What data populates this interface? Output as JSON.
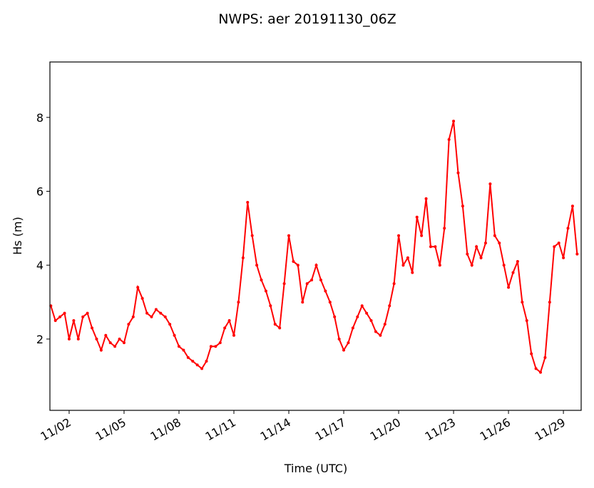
{
  "chart_data": {
    "type": "line",
    "title": "NWPS: aer 20191130_06Z",
    "x_label": "Time (UTC)",
    "y_label": "Hs (m)",
    "x": [
      1,
      1.25,
      1.5,
      1.75,
      2,
      2.25,
      2.5,
      2.75,
      3,
      3.25,
      3.5,
      3.75,
      4,
      4.25,
      4.5,
      4.75,
      5,
      5.25,
      5.5,
      5.75,
      6,
      6.25,
      6.5,
      6.75,
      7,
      7.25,
      7.5,
      7.75,
      8,
      8.25,
      8.5,
      8.75,
      9,
      9.25,
      9.5,
      9.75,
      10,
      10.25,
      10.5,
      10.75,
      11,
      11.25,
      11.5,
      11.75,
      12,
      12.25,
      12.5,
      12.75,
      13,
      13.25,
      13.5,
      13.75,
      14,
      14.25,
      14.5,
      14.75,
      15,
      15.25,
      15.5,
      15.75,
      16,
      16.25,
      16.5,
      16.75,
      17,
      17.25,
      17.5,
      17.75,
      18,
      18.25,
      18.5,
      18.75,
      19,
      19.25,
      19.5,
      19.75,
      20,
      20.25,
      20.5,
      20.75,
      21,
      21.25,
      21.5,
      21.75,
      22,
      22.25,
      22.5,
      22.75,
      23,
      23.25,
      23.5,
      23.75,
      24,
      24.25,
      24.5,
      24.75,
      25,
      25.25,
      25.5,
      25.75,
      26,
      26.25,
      26.5,
      26.75,
      27,
      27.25,
      27.5,
      27.75,
      28,
      28.25,
      28.5,
      28.75,
      29,
      29.25,
      29.5,
      29.75
    ],
    "series": [
      {
        "color": "#ff0000",
        "values": [
          2.9,
          2.5,
          2.6,
          2.7,
          2.0,
          2.5,
          2.0,
          2.6,
          2.7,
          2.3,
          2.0,
          1.7,
          2.1,
          1.9,
          1.8,
          2.0,
          1.9,
          2.4,
          2.6,
          3.4,
          3.1,
          2.7,
          2.6,
          2.8,
          2.7,
          2.6,
          2.4,
          2.1,
          1.8,
          1.7,
          1.5,
          1.4,
          1.3,
          1.2,
          1.4,
          1.8,
          1.8,
          1.9,
          2.3,
          2.5,
          2.1,
          3.0,
          4.2,
          5.7,
          4.8,
          4.0,
          3.6,
          3.3,
          2.9,
          2.4,
          2.3,
          3.5,
          4.8,
          4.1,
          4.0,
          3.0,
          3.5,
          3.6,
          4.0,
          3.6,
          3.3,
          3.0,
          2.6,
          2.0,
          1.7,
          1.9,
          2.3,
          2.6,
          2.9,
          2.7,
          2.5,
          2.2,
          2.1,
          2.4,
          2.9,
          3.5,
          4.8,
          4.0,
          4.2,
          3.8,
          5.3,
          4.8,
          5.8,
          4.5,
          4.5,
          4.0,
          5.0,
          7.4,
          7.9,
          6.5,
          5.6,
          4.3,
          4.0,
          4.5,
          4.2,
          4.6,
          6.2,
          4.8,
          4.6,
          4.0,
          3.4,
          3.8,
          4.1,
          3.0,
          2.5,
          1.6,
          1.2,
          1.1,
          1.5,
          3.0,
          4.5,
          4.6,
          4.2,
          5.0,
          5.6,
          4.3
        ]
      }
    ],
    "xlim": [
      0.95,
      29.97
    ],
    "xticks": [
      {
        "value": 2,
        "label": "11/02"
      },
      {
        "value": 5,
        "label": "11/05"
      },
      {
        "value": 8,
        "label": "11/08"
      },
      {
        "value": 11,
        "label": "11/11"
      },
      {
        "value": 14,
        "label": "11/14"
      },
      {
        "value": 17,
        "label": "11/17"
      },
      {
        "value": 20,
        "label": "11/20"
      },
      {
        "value": 23,
        "label": "11/23"
      },
      {
        "value": 26,
        "label": "11/26"
      },
      {
        "value": 29,
        "label": "11/29"
      }
    ],
    "ylim": [
      0.07,
      9.5
    ],
    "yticks": [
      2,
      4,
      6,
      8
    ]
  }
}
